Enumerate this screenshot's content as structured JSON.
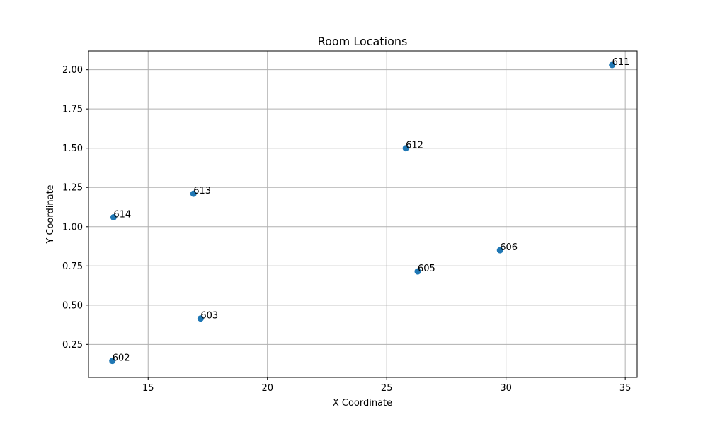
{
  "chart_data": {
    "type": "scatter",
    "title": "Room Locations",
    "xlabel": "X Coordinate",
    "ylabel": "Y Coordinate",
    "xlim": [
      12.5,
      35.5
    ],
    "ylim": [
      0.04,
      2.12
    ],
    "x_ticks": [
      15,
      20,
      25,
      30,
      35
    ],
    "x_tick_labels": [
      "15",
      "20",
      "25",
      "30",
      "35"
    ],
    "y_ticks": [
      0.25,
      0.5,
      0.75,
      1.0,
      1.25,
      1.5,
      1.75,
      2.0
    ],
    "y_tick_labels": [
      "0.25",
      "0.50",
      "0.75",
      "1.00",
      "1.25",
      "1.50",
      "1.75",
      "2.00"
    ],
    "grid": true,
    "marker_color": "#1f77b4",
    "points": [
      {
        "label": "611",
        "x": 34.45,
        "y": 2.03
      },
      {
        "label": "612",
        "x": 25.8,
        "y": 1.5
      },
      {
        "label": "613",
        "x": 16.9,
        "y": 1.21
      },
      {
        "label": "614",
        "x": 13.55,
        "y": 1.06
      },
      {
        "label": "606",
        "x": 29.75,
        "y": 0.85
      },
      {
        "label": "605",
        "x": 26.3,
        "y": 0.715
      },
      {
        "label": "603",
        "x": 17.2,
        "y": 0.415
      },
      {
        "label": "602",
        "x": 13.5,
        "y": 0.145
      }
    ]
  }
}
